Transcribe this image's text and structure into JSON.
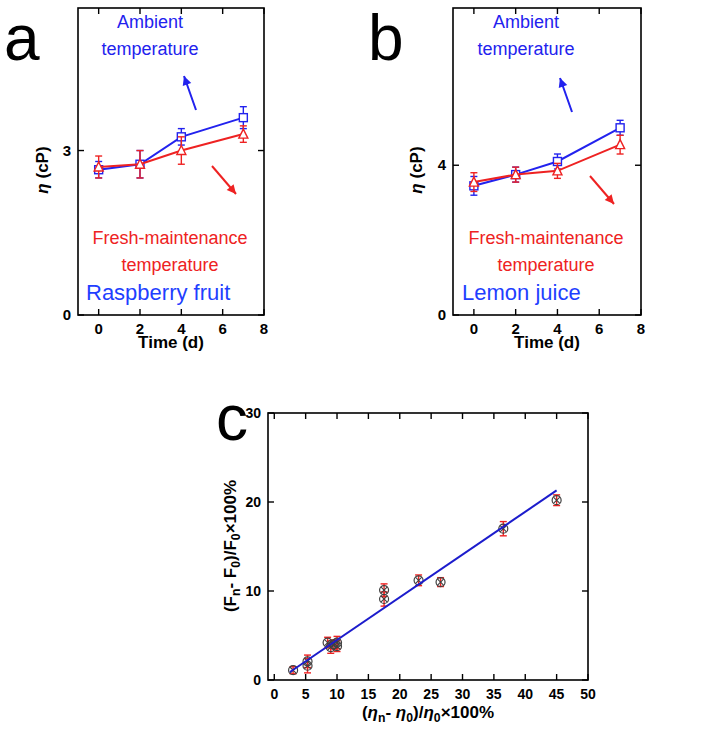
{
  "chart_data": [
    {
      "type": "line",
      "panel_label": "a",
      "title": "Raspberry fruit",
      "x_label": "Time (d)",
      "y_label": "η (cP)",
      "x": [
        0,
        2,
        4,
        7
      ],
      "xlim": [
        -1,
        8
      ],
      "xticks": [
        0,
        2,
        4,
        6,
        8
      ],
      "ylim": [
        0,
        5.6
      ],
      "yticks": [
        0,
        3
      ],
      "series": [
        {
          "name": "Ambient temperature",
          "color": "#2222ee",
          "marker": "square",
          "values": [
            2.65,
            2.75,
            3.25,
            3.6
          ],
          "errors": [
            0.15,
            0.25,
            0.15,
            0.2
          ]
        },
        {
          "name": "Fresh-maintenance temperature",
          "color": "#ee2222",
          "marker": "triangle",
          "values": [
            2.7,
            2.75,
            3.0,
            3.3
          ],
          "errors": [
            0.2,
            0.25,
            0.25,
            0.15
          ]
        }
      ]
    },
    {
      "type": "line",
      "panel_label": "b",
      "title": "Lemon juice",
      "x_label": "Time (d)",
      "y_label": "η (cP)",
      "x": [
        0,
        2,
        4,
        7
      ],
      "xlim": [
        -1,
        8
      ],
      "xticks": [
        0,
        2,
        4,
        6,
        8
      ],
      "ylim": [
        0,
        8.2
      ],
      "yticks": [
        0,
        4
      ],
      "series": [
        {
          "name": "Ambient temperature",
          "color": "#2222ee",
          "marker": "square",
          "values": [
            3.45,
            3.75,
            4.1,
            5.0
          ],
          "errors": [
            0.25,
            0.2,
            0.2,
            0.2
          ]
        },
        {
          "name": "Fresh-maintenance temperature",
          "color": "#ee2222",
          "marker": "triangle",
          "values": [
            3.55,
            3.75,
            3.85,
            4.55
          ],
          "errors": [
            0.25,
            0.2,
            0.2,
            0.25
          ]
        }
      ]
    },
    {
      "type": "scatter",
      "panel_label": "c",
      "x_label": "(ηn- η0)/η0×100%",
      "y_label": "(Fn- F0)/F0×100%",
      "xlim": [
        -1,
        50
      ],
      "xticks": [
        0,
        5,
        10,
        15,
        20,
        25,
        30,
        35,
        40,
        45,
        50
      ],
      "ylim": [
        0,
        30
      ],
      "yticks": [
        0,
        10,
        20,
        30
      ],
      "series": [
        {
          "type": "scatter",
          "color": "#404040",
          "marker": "circle-x",
          "x": [
            3,
            5.3,
            5.3,
            8.5,
            9,
            9.5,
            10,
            10,
            17.5,
            17.5,
            23,
            26.5,
            36.5,
            45
          ],
          "values": [
            1.1,
            1.6,
            2.1,
            4.2,
            3.7,
            4.0,
            3.8,
            4.2,
            9.1,
            10.1,
            11.2,
            11.0,
            17.0,
            20.2
          ],
          "errors": [
            0.4,
            0.8,
            0.7,
            0.6,
            0.7,
            0.5,
            0.6,
            0.7,
            0.8,
            0.7,
            0.6,
            0.5,
            0.8,
            0.6
          ]
        },
        {
          "type": "line",
          "color": "#1c1ccc",
          "x": [
            2.5,
            45
          ],
          "values": [
            0.9,
            21.3
          ]
        }
      ]
    }
  ]
}
